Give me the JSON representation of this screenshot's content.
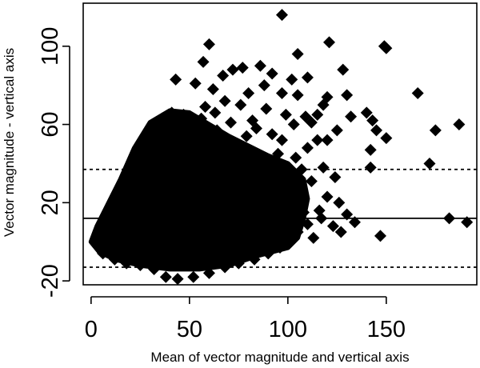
{
  "chart_data": {
    "type": "scatter",
    "title": "",
    "xlabel": "Mean of vector magnitude and vertical axis",
    "ylabel": "Vector magnitude - vertical axis",
    "xlim": [
      -4,
      196
    ],
    "ylim": [
      -22,
      122
    ],
    "x_ticks": [
      0,
      50,
      100,
      150
    ],
    "x_tick_labels": [
      "0",
      "50",
      "100",
      "150"
    ],
    "y_ticks": [
      -20,
      20,
      60,
      100
    ],
    "y_tick_labels": [
      "-20",
      "20",
      "60",
      "100"
    ],
    "marker": "filled-diamond",
    "marker_color": "#000000",
    "grid": false,
    "reference_lines": [
      {
        "name": "mean difference",
        "value": 12,
        "style": "solid"
      },
      {
        "name": "upper limit of agreement",
        "value": 37,
        "style": "dotted"
      },
      {
        "name": "lower limit of agreement",
        "value": -13,
        "style": "dotted"
      }
    ],
    "dense_cloud_outline": [
      [
        0,
        0
      ],
      [
        4,
        -5
      ],
      [
        12,
        -9
      ],
      [
        25,
        -12
      ],
      [
        40,
        -14
      ],
      [
        55,
        -14
      ],
      [
        70,
        -12
      ],
      [
        85,
        -7
      ],
      [
        100,
        -3
      ],
      [
        105,
        2
      ],
      [
        108,
        12
      ],
      [
        110,
        22
      ],
      [
        108,
        32
      ],
      [
        100,
        40
      ],
      [
        90,
        44
      ],
      [
        80,
        49
      ],
      [
        70,
        54
      ],
      [
        60,
        60
      ],
      [
        50,
        66
      ],
      [
        40,
        67
      ],
      [
        30,
        61
      ],
      [
        22,
        48
      ],
      [
        15,
        32
      ],
      [
        8,
        18
      ],
      [
        3,
        8
      ]
    ],
    "outlier_points": [
      [
        97,
        116
      ],
      [
        60,
        101
      ],
      [
        121,
        102
      ],
      [
        150,
        99
      ],
      [
        149,
        100
      ],
      [
        105,
        96
      ],
      [
        77,
        89
      ],
      [
        86,
        90
      ],
      [
        72,
        88
      ],
      [
        57,
        92
      ],
      [
        92,
        86
      ],
      [
        102,
        83
      ],
      [
        110,
        84
      ],
      [
        128,
        88
      ],
      [
        43,
        83
      ],
      [
        53,
        81
      ],
      [
        62,
        78
      ],
      [
        67,
        85
      ],
      [
        80,
        76
      ],
      [
        88,
        80
      ],
      [
        97,
        76
      ],
      [
        105,
        75
      ],
      [
        120,
        74
      ],
      [
        130,
        75
      ],
      [
        166,
        76
      ],
      [
        175,
        57
      ],
      [
        187,
        60
      ],
      [
        140,
        66
      ],
      [
        143,
        62
      ],
      [
        145,
        57
      ],
      [
        150,
        53
      ],
      [
        120,
        52
      ],
      [
        125,
        57
      ],
      [
        132,
        64
      ],
      [
        115,
        65
      ],
      [
        118,
        70
      ],
      [
        112,
        61
      ],
      [
        103,
        60
      ],
      [
        97,
        52
      ],
      [
        92,
        55
      ],
      [
        82,
        62
      ],
      [
        76,
        70
      ],
      [
        68,
        72
      ],
      [
        63,
        66
      ],
      [
        58,
        69
      ],
      [
        95,
        45
      ],
      [
        104,
        43
      ],
      [
        110,
        48
      ],
      [
        118,
        38
      ],
      [
        124,
        33
      ],
      [
        142,
        47
      ],
      [
        142,
        38
      ],
      [
        172,
        40
      ],
      [
        182,
        12
      ],
      [
        191,
        10
      ],
      [
        147,
        3
      ],
      [
        127,
        5
      ],
      [
        123,
        8
      ],
      [
        117,
        12
      ],
      [
        113,
        2
      ],
      [
        110,
        9
      ],
      [
        105,
        5
      ],
      [
        100,
        0
      ],
      [
        96,
        -3
      ],
      [
        90,
        -6
      ],
      [
        83,
        -9
      ],
      [
        75,
        -11
      ],
      [
        68,
        -13
      ],
      [
        60,
        -16
      ],
      [
        52,
        -18
      ],
      [
        44,
        -19
      ],
      [
        38,
        -18
      ],
      [
        32,
        -14
      ],
      [
        25,
        -12
      ],
      [
        18,
        -11
      ],
      [
        12,
        -9
      ],
      [
        6,
        -6
      ],
      [
        2,
        0
      ],
      [
        112,
        31
      ],
      [
        107,
        37
      ],
      [
        100,
        30
      ],
      [
        96,
        22
      ],
      [
        120,
        23
      ],
      [
        126,
        20
      ],
      [
        116,
        16
      ],
      [
        108,
        15
      ],
      [
        130,
        14
      ],
      [
        134,
        10
      ],
      [
        115,
        52
      ],
      [
        109,
        64
      ],
      [
        99,
        65
      ],
      [
        89,
        68
      ],
      [
        84,
        58
      ],
      [
        79,
        54
      ],
      [
        71,
        61
      ],
      [
        64,
        57
      ],
      [
        56,
        63
      ],
      [
        47,
        65
      ],
      [
        41,
        66
      ],
      [
        36,
        63
      ]
    ]
  }
}
